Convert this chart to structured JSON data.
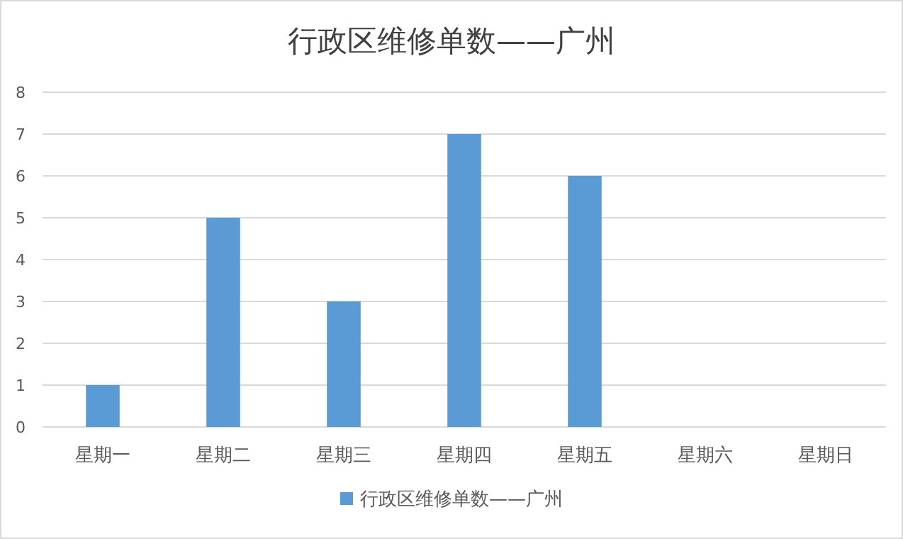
{
  "chart_data": {
    "type": "bar",
    "title": "行政区维修单数——广州",
    "categories": [
      "星期一",
      "星期二",
      "星期三",
      "星期四",
      "星期五",
      "星期六",
      "星期日"
    ],
    "series": [
      {
        "name": "行政区维修单数——广州",
        "color": "#5b9bd5",
        "values": [
          1,
          5,
          3,
          7,
          6,
          0,
          0
        ]
      }
    ],
    "ylim": [
      0,
      8
    ],
    "yticks": [
      0,
      1,
      2,
      3,
      4,
      5,
      6,
      7,
      8
    ],
    "grid": "y",
    "legend": "bottom"
  }
}
